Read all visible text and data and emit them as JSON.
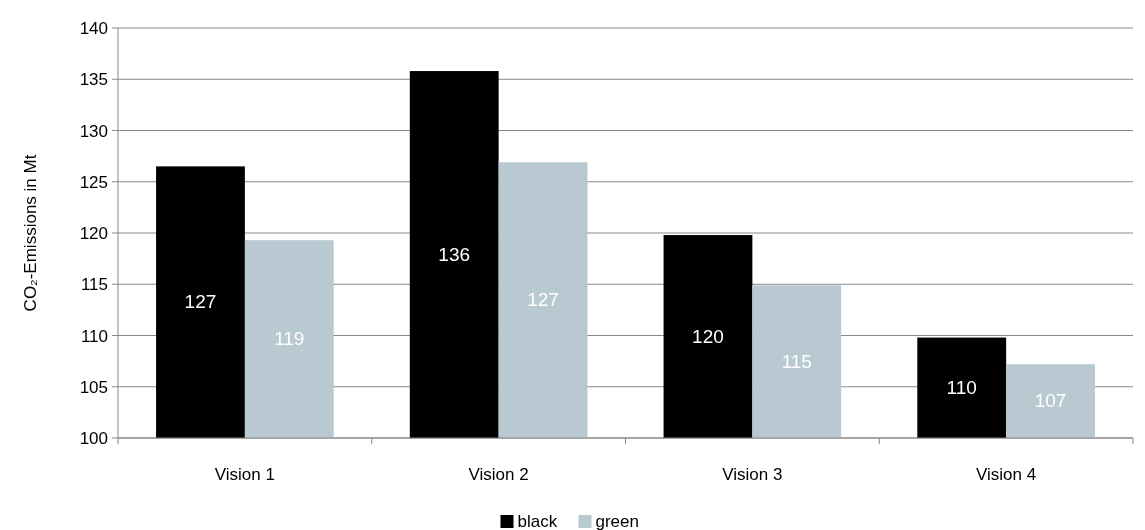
{
  "chart_data": {
    "type": "bar",
    "ylabel": "CO₂-Emissions in Mt",
    "categories": [
      "Vision 1",
      "Vision 2",
      "Vision 3",
      "Vision 4"
    ],
    "series": [
      {
        "name": "black",
        "color": "#000000",
        "values": [
          126.5,
          135.8,
          119.8,
          109.8
        ],
        "value_labels": [
          "127",
          "136",
          "120",
          "110"
        ]
      },
      {
        "name": "green",
        "color": "#b9c9d1",
        "values": [
          119.3,
          126.9,
          114.9,
          107.2
        ],
        "value_labels": [
          "119",
          "127",
          "115",
          "107"
        ]
      }
    ],
    "ylim": [
      100,
      140
    ],
    "yticks": [
      100,
      105,
      110,
      115,
      120,
      125,
      130,
      135,
      140
    ],
    "grid": "y",
    "legend": "bottom"
  }
}
